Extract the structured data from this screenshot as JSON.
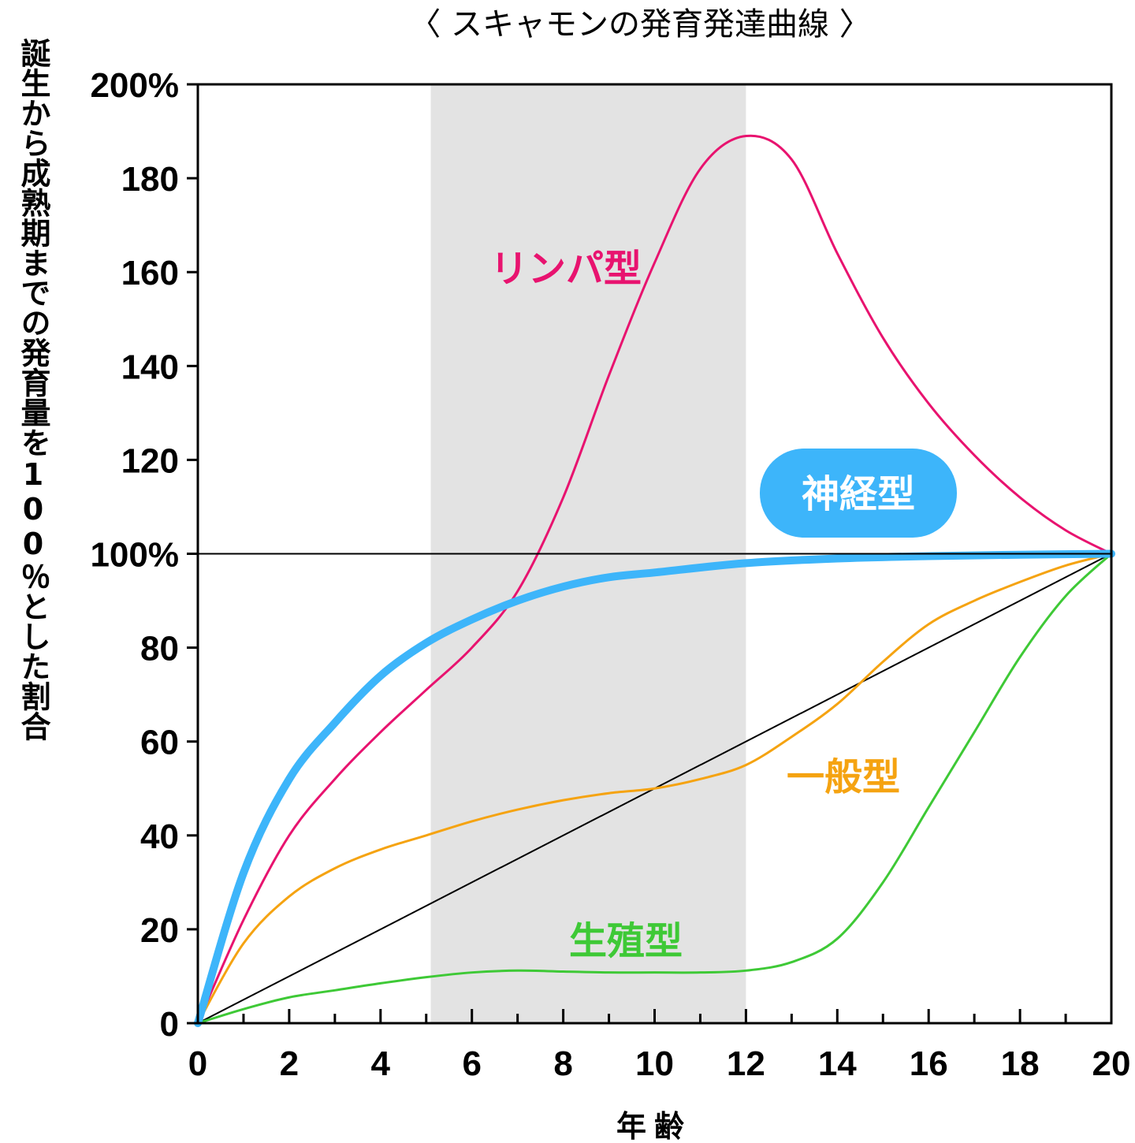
{
  "chart_data": {
    "type": "line",
    "title": "〈 スキャモンの発育発達曲線 〉",
    "xlabel": "年齢",
    "ylabel": "誕生から成熟期までの発育量を100％とした割合",
    "xlim": [
      0,
      20
    ],
    "ylim": [
      0,
      200
    ],
    "x_ticks": [
      0,
      2,
      4,
      6,
      8,
      10,
      12,
      14,
      16,
      18,
      20
    ],
    "x_tick_labels": [
      "0",
      "2",
      "4",
      "6",
      "8",
      "10",
      "12",
      "14",
      "16",
      "18",
      "20"
    ],
    "y_ticks": [
      0,
      20,
      40,
      60,
      80,
      100,
      120,
      140,
      160,
      180,
      200
    ],
    "y_tick_labels": [
      "0",
      "20",
      "40",
      "60",
      "80",
      "100%",
      "120",
      "140",
      "160",
      "180",
      "200%"
    ],
    "shaded_region": [
      5.1,
      12
    ],
    "reference_line_y": 100,
    "series": [
      {
        "name": "リンパ型",
        "color": "#e8136f",
        "points": [
          [
            0,
            0
          ],
          [
            1,
            22
          ],
          [
            2,
            40
          ],
          [
            3,
            52
          ],
          [
            4,
            62
          ],
          [
            5,
            71
          ],
          [
            6,
            80
          ],
          [
            7,
            92
          ],
          [
            8,
            112
          ],
          [
            9,
            138
          ],
          [
            10,
            162
          ],
          [
            11,
            182
          ],
          [
            12,
            189
          ],
          [
            13,
            184
          ],
          [
            14,
            164
          ],
          [
            15,
            146
          ],
          [
            16,
            132
          ],
          [
            17,
            121
          ],
          [
            18,
            112
          ],
          [
            19,
            105
          ],
          [
            20,
            100
          ]
        ]
      },
      {
        "name": "神経型",
        "color": "#3db5fa",
        "points": [
          [
            0,
            0
          ],
          [
            1,
            32
          ],
          [
            2,
            52
          ],
          [
            3,
            64
          ],
          [
            4,
            74
          ],
          [
            5,
            81
          ],
          [
            6,
            86
          ],
          [
            7,
            90
          ],
          [
            8,
            93
          ],
          [
            9,
            95
          ],
          [
            10,
            96
          ],
          [
            12,
            98
          ],
          [
            14,
            99
          ],
          [
            16,
            99.5
          ],
          [
            18,
            99.8
          ],
          [
            20,
            100
          ]
        ]
      },
      {
        "name": "一般型",
        "color": "#f5a311",
        "points": [
          [
            0,
            0
          ],
          [
            1,
            17
          ],
          [
            2,
            27
          ],
          [
            3,
            33
          ],
          [
            4,
            37
          ],
          [
            5,
            40
          ],
          [
            6,
            43
          ],
          [
            7,
            45.5
          ],
          [
            8,
            47.5
          ],
          [
            9,
            49
          ],
          [
            10,
            50
          ],
          [
            11,
            52
          ],
          [
            12,
            55
          ],
          [
            13,
            61
          ],
          [
            14,
            68
          ],
          [
            15,
            77
          ],
          [
            16,
            85
          ],
          [
            17,
            90
          ],
          [
            18,
            94
          ],
          [
            19,
            97.5
          ],
          [
            20,
            100
          ]
        ]
      },
      {
        "name": "生殖型",
        "color": "#3ec936",
        "points": [
          [
            0,
            0
          ],
          [
            1,
            3
          ],
          [
            2,
            5.5
          ],
          [
            3,
            7
          ],
          [
            4,
            8.5
          ],
          [
            5,
            9.8
          ],
          [
            6,
            10.8
          ],
          [
            7,
            11.2
          ],
          [
            8,
            11
          ],
          [
            9,
            10.8
          ],
          [
            10,
            10.8
          ],
          [
            11,
            10.8
          ],
          [
            12,
            11.2
          ],
          [
            13,
            13
          ],
          [
            14,
            18
          ],
          [
            15,
            30
          ],
          [
            16,
            46
          ],
          [
            17,
            62
          ],
          [
            18,
            78
          ],
          [
            19,
            91
          ],
          [
            20,
            100
          ]
        ]
      },
      {
        "name": "",
        "color": "#000000",
        "points": [
          [
            0,
            0
          ],
          [
            20,
            100
          ]
        ]
      }
    ]
  },
  "labels": {
    "lymph": "リンパ型",
    "nerve": "神経型",
    "general": "一般型",
    "repro": "生殖型"
  }
}
